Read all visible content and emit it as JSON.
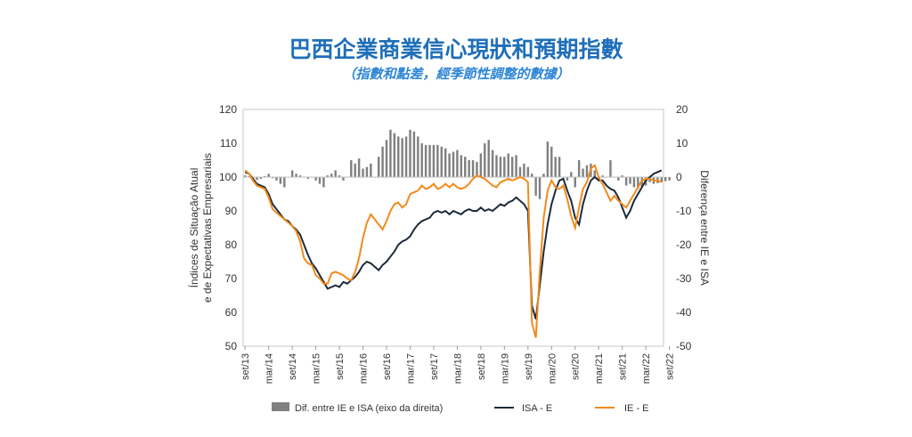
{
  "title": "巴西企業商業信心現狀和預期指數",
  "subtitle": "（指數和點差，經季節性調整的數據）",
  "chart_data": {
    "type": "line",
    "left_axis": {
      "label": "Índices de Situação Atual e de Expectativas Empresariais",
      "ylim": [
        50,
        120
      ],
      "ticks": [
        50,
        60,
        70,
        80,
        90,
        100,
        110,
        120
      ]
    },
    "right_axis": {
      "label": "Diferença entre IE e ISA",
      "ylim": [
        -50,
        20
      ],
      "ticks": [
        -50,
        -40,
        -30,
        -20,
        -10,
        0,
        10,
        20
      ]
    },
    "x_tick_labels": [
      "set/13",
      "mar/14",
      "set/14",
      "mar/15",
      "set/15",
      "mar/16",
      "set/16",
      "mar/17",
      "set/17",
      "mar/18",
      "set/18",
      "mar/19",
      "set/19",
      "mar/20",
      "set/20",
      "mar/21",
      "set/21",
      "mar/22",
      "set/22"
    ],
    "x_start": "set/13",
    "series": [
      {
        "name": "Dif. entre IE e ISA (eixo da direita)",
        "kind": "bar",
        "axis": "right",
        "color": "#808080",
        "values": [
          0.5,
          0.3,
          -1.0,
          -0.8,
          -0.5,
          0.3,
          1.0,
          -0.3,
          -1.0,
          -2.0,
          -3.0,
          0.0,
          2.0,
          1.0,
          0.5,
          0.0,
          -0.5,
          0.0,
          -1.0,
          -2.0,
          -3.0,
          0.5,
          1.0,
          2.0,
          0.5,
          -1.0,
          0.0,
          5.0,
          4.0,
          5.5,
          2.5,
          3.0,
          4.0,
          0.0,
          6.0,
          9.0,
          11.0,
          14.0,
          13.0,
          12.0,
          11.5,
          12.0,
          14.0,
          13.5,
          12.0,
          10.0,
          9.5,
          9.5,
          9.5,
          9.5,
          9.0,
          8.5,
          7.0,
          7.5,
          8.0,
          6.5,
          6.0,
          5.0,
          5.0,
          4.5,
          7.0,
          10.0,
          11.0,
          8.0,
          6.5,
          6.0,
          6.0,
          7.0,
          6.0,
          6.5,
          3.0,
          4.0,
          3.0,
          1.0,
          -5.5,
          -6.5,
          1.0,
          10.5,
          9.0,
          6.0,
          6.0,
          0.0,
          -1.0,
          1.5,
          -3.0,
          5.0,
          2.5,
          3.5,
          4.0,
          2.0,
          -1.0,
          0.5,
          0.0,
          5.0,
          0.0,
          -1.0,
          0.5,
          -2.5,
          -2.0,
          -3.0,
          -3.5,
          -3.0,
          -2.5,
          -1.5,
          -2.0,
          -1.8,
          -1.5,
          -1.2,
          -1.0
        ]
      },
      {
        "name": "ISA - E",
        "kind": "line",
        "axis": "left",
        "color": "#1c2b3a",
        "values": [
          101.5,
          101.0,
          99.5,
          98.0,
          97.5,
          97.0,
          95.0,
          92.0,
          90.5,
          89.0,
          87.5,
          87.0,
          85.5,
          84.5,
          83.0,
          80.0,
          77.0,
          74.5,
          73.0,
          71.0,
          69.0,
          67.0,
          67.5,
          68.0,
          67.5,
          69.0,
          68.5,
          69.5,
          70.5,
          72.0,
          74.0,
          75.0,
          74.5,
          73.5,
          72.5,
          74.0,
          75.0,
          76.5,
          78.0,
          80.0,
          81.0,
          81.5,
          82.5,
          84.5,
          86.0,
          87.0,
          87.5,
          88.0,
          89.5,
          90.0,
          89.5,
          90.0,
          89.0,
          90.0,
          89.5,
          89.0,
          90.0,
          90.5,
          90.0,
          90.0,
          91.0,
          90.0,
          90.5,
          90.0,
          91.0,
          92.0,
          91.5,
          92.5,
          93.0,
          94.0,
          93.0,
          92.0,
          90.0,
          62.0,
          58.0,
          68.0,
          78.0,
          86.0,
          92.0,
          96.0,
          99.0,
          99.5,
          96.0,
          93.0,
          88.0,
          86.0,
          92.0,
          96.0,
          99.0,
          100.0,
          99.0,
          99.0,
          97.5,
          96.5,
          96.0,
          94.0,
          91.0,
          88.0,
          90.0,
          93.0,
          95.0,
          97.0,
          99.0,
          100.0,
          101.0,
          101.5,
          102.0
        ]
      },
      {
        "name": "IE - E",
        "kind": "line",
        "axis": "left",
        "color": "#f28a1c",
        "values": [
          102.0,
          101.0,
          99.0,
          97.5,
          97.0,
          96.5,
          94.0,
          90.5,
          89.5,
          88.5,
          87.5,
          86.5,
          85.5,
          84.0,
          81.0,
          76.0,
          74.5,
          74.0,
          71.0,
          70.0,
          68.5,
          68.5,
          71.5,
          72.0,
          71.5,
          71.0,
          70.0,
          69.5,
          72.0,
          76.0,
          82.0,
          86.5,
          89.0,
          87.5,
          86.0,
          84.5,
          87.0,
          90.0,
          92.0,
          92.5,
          91.0,
          92.0,
          95.0,
          95.5,
          96.0,
          97.5,
          96.5,
          97.0,
          98.0,
          96.5,
          97.0,
          98.0,
          97.0,
          98.0,
          97.0,
          96.5,
          97.0,
          98.0,
          99.5,
          100.5,
          100.0,
          99.5,
          98.5,
          97.5,
          97.0,
          98.5,
          99.0,
          99.5,
          99.0,
          99.5,
          100.0,
          99.5,
          98.5,
          57.0,
          52.5,
          72.0,
          88.0,
          96.0,
          99.0,
          97.0,
          96.5,
          97.5,
          93.5,
          88.5,
          85.0,
          91.0,
          96.5,
          98.5,
          102.5,
          103.5,
          100.0,
          98.0,
          95.5,
          93.0,
          94.5,
          93.0,
          92.0,
          91.0,
          93.0,
          95.0,
          97.0,
          99.0,
          99.5,
          99.5,
          99.0,
          99.0,
          98.5
        ]
      }
    ],
    "legend_position": "bottom",
    "grid": false
  }
}
